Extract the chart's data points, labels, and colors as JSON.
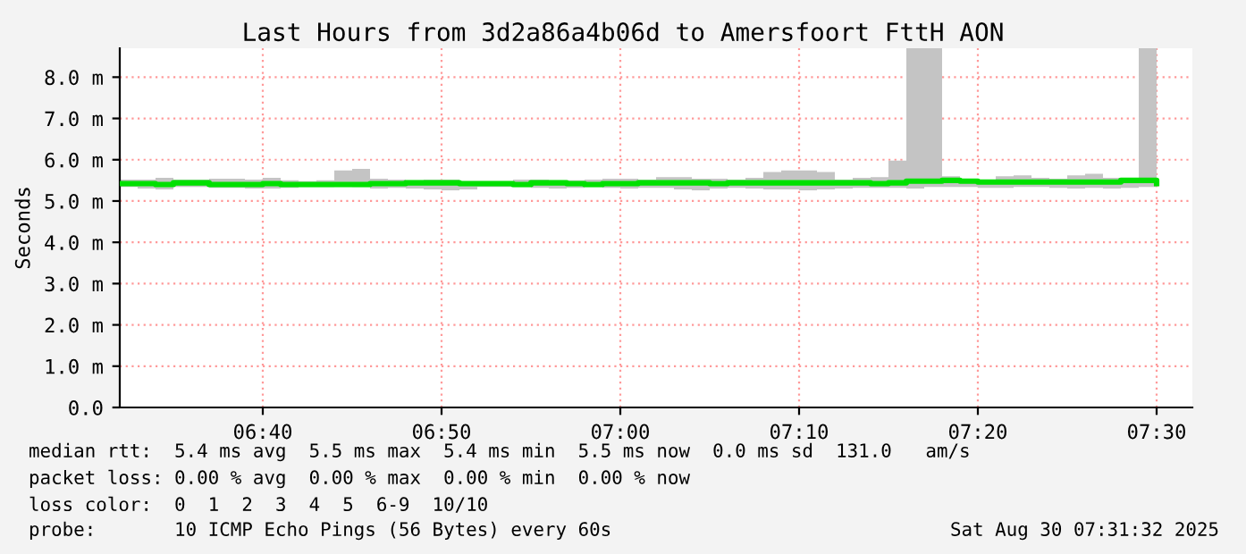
{
  "chart_data": {
    "type": "step",
    "title": "Last Hours from 3d2a86a4b06d to Amersfoort FttH AON",
    "ylabel": "Seconds",
    "x": [
      "2025-08-30T06:32",
      "2025-08-30T06:33",
      "2025-08-30T06:34",
      "2025-08-30T06:35",
      "2025-08-30T06:36",
      "2025-08-30T06:37",
      "2025-08-30T06:38",
      "2025-08-30T06:39",
      "2025-08-30T06:40",
      "2025-08-30T06:41",
      "2025-08-30T06:42",
      "2025-08-30T06:43",
      "2025-08-30T06:44",
      "2025-08-30T06:45",
      "2025-08-30T06:46",
      "2025-08-30T06:47",
      "2025-08-30T06:48",
      "2025-08-30T06:49",
      "2025-08-30T06:50",
      "2025-08-30T06:51",
      "2025-08-30T06:52",
      "2025-08-30T06:53",
      "2025-08-30T06:54",
      "2025-08-30T06:55",
      "2025-08-30T06:56",
      "2025-08-30T06:57",
      "2025-08-30T06:58",
      "2025-08-30T06:59",
      "2025-08-30T07:00",
      "2025-08-30T07:01",
      "2025-08-30T07:02",
      "2025-08-30T07:03",
      "2025-08-30T07:04",
      "2025-08-30T07:05",
      "2025-08-30T07:06",
      "2025-08-30T07:07",
      "2025-08-30T07:08",
      "2025-08-30T07:09",
      "2025-08-30T07:10",
      "2025-08-30T07:11",
      "2025-08-30T07:12",
      "2025-08-30T07:13",
      "2025-08-30T07:14",
      "2025-08-30T07:15",
      "2025-08-30T07:16",
      "2025-08-30T07:17",
      "2025-08-30T07:18",
      "2025-08-30T07:19",
      "2025-08-30T07:20",
      "2025-08-30T07:21",
      "2025-08-30T07:22",
      "2025-08-30T07:23",
      "2025-08-30T07:24",
      "2025-08-30T07:25",
      "2025-08-30T07:26",
      "2025-08-30T07:27",
      "2025-08-30T07:28",
      "2025-08-30T07:29",
      "2025-08-30T07:30"
    ],
    "series": [
      {
        "color": "#00e000",
        "values": [
          5.42,
          5.42,
          5.4,
          5.44,
          5.44,
          5.4,
          5.4,
          5.4,
          5.42,
          5.4,
          5.4,
          5.4,
          5.4,
          5.4,
          5.42,
          5.42,
          5.44,
          5.44,
          5.44,
          5.42,
          5.42,
          5.42,
          5.4,
          5.44,
          5.44,
          5.42,
          5.4,
          5.42,
          5.42,
          5.44,
          5.44,
          5.44,
          5.44,
          5.42,
          5.44,
          5.44,
          5.44,
          5.44,
          5.44,
          5.44,
          5.44,
          5.44,
          5.42,
          5.44,
          5.48,
          5.48,
          5.5,
          5.48,
          5.46,
          5.46,
          5.46,
          5.46,
          5.46,
          5.46,
          5.46,
          5.46,
          5.5,
          5.5,
          5.42
        ],
        "lower": [
          5.34,
          5.3,
          5.28,
          5.34,
          5.34,
          5.32,
          5.32,
          5.3,
          5.3,
          5.32,
          5.34,
          5.34,
          5.36,
          5.34,
          5.3,
          5.32,
          5.3,
          5.28,
          5.26,
          5.28,
          5.34,
          5.34,
          5.34,
          5.32,
          5.3,
          5.32,
          5.34,
          5.32,
          5.3,
          5.32,
          5.32,
          5.28,
          5.26,
          5.3,
          5.32,
          5.3,
          5.28,
          5.28,
          5.26,
          5.28,
          5.3,
          5.32,
          5.32,
          5.32,
          5.3,
          5.34,
          5.34,
          5.34,
          5.32,
          5.32,
          5.34,
          5.34,
          5.32,
          5.3,
          5.32,
          5.3,
          5.32,
          5.34,
          5.32
        ],
        "upper": [
          5.52,
          5.52,
          5.56,
          5.52,
          5.52,
          5.54,
          5.54,
          5.52,
          5.56,
          5.5,
          5.48,
          5.5,
          5.74,
          5.78,
          5.54,
          5.52,
          5.5,
          5.52,
          5.52,
          5.48,
          5.48,
          5.48,
          5.52,
          5.52,
          5.5,
          5.5,
          5.52,
          5.54,
          5.54,
          5.52,
          5.58,
          5.58,
          5.54,
          5.54,
          5.52,
          5.56,
          5.7,
          5.74,
          5.74,
          5.7,
          5.52,
          5.56,
          5.58,
          5.98,
          8.7,
          8.7,
          5.6,
          5.52,
          5.52,
          5.6,
          5.62,
          5.56,
          5.54,
          5.62,
          5.66,
          5.56,
          5.56,
          8.7,
          5.58
        ]
      }
    ],
    "xlim": [
      "2025-08-30T06:32",
      "2025-08-30T07:32"
    ],
    "xticks": [
      {
        "value": "2025-08-30T06:40",
        "label": "06:40"
      },
      {
        "value": "2025-08-30T06:50",
        "label": "06:50"
      },
      {
        "value": "2025-08-30T07:00",
        "label": "07:00"
      },
      {
        "value": "2025-08-30T07:10",
        "label": "07:10"
      },
      {
        "value": "2025-08-30T07:20",
        "label": "07:20"
      },
      {
        "value": "2025-08-30T07:30",
        "label": "07:30"
      }
    ],
    "ylim": [
      0,
      8.7
    ],
    "yticks": [
      {
        "value": 0,
        "label": "0.0"
      },
      {
        "value": 1,
        "label": "1.0 m"
      },
      {
        "value": 2,
        "label": "2.0 m"
      },
      {
        "value": 3,
        "label": "3.0 m"
      },
      {
        "value": 4,
        "label": "4.0 m"
      },
      {
        "value": 5,
        "label": "5.0 m"
      },
      {
        "value": 6,
        "label": "6.0 m"
      },
      {
        "value": 7,
        "label": "7.0 m"
      },
      {
        "value": 8,
        "label": "8.0 m"
      }
    ],
    "grid": true,
    "annotations": [
      "median rtt:  5.4 ms avg  5.5 ms max  5.4 ms min  5.5 ms now  0.0 ms sd  131.0   am/s",
      "packet loss: 0.00 % avg  0.00 % max  0.00 % min  0.00 % now",
      "loss color:  0  1  2  3  4  5  6-9  10/10",
      "probe:       10 ICMP Echo Pings (56 Bytes) every 60s",
      "Sat Aug 30 07:31:32 2025"
    ]
  }
}
